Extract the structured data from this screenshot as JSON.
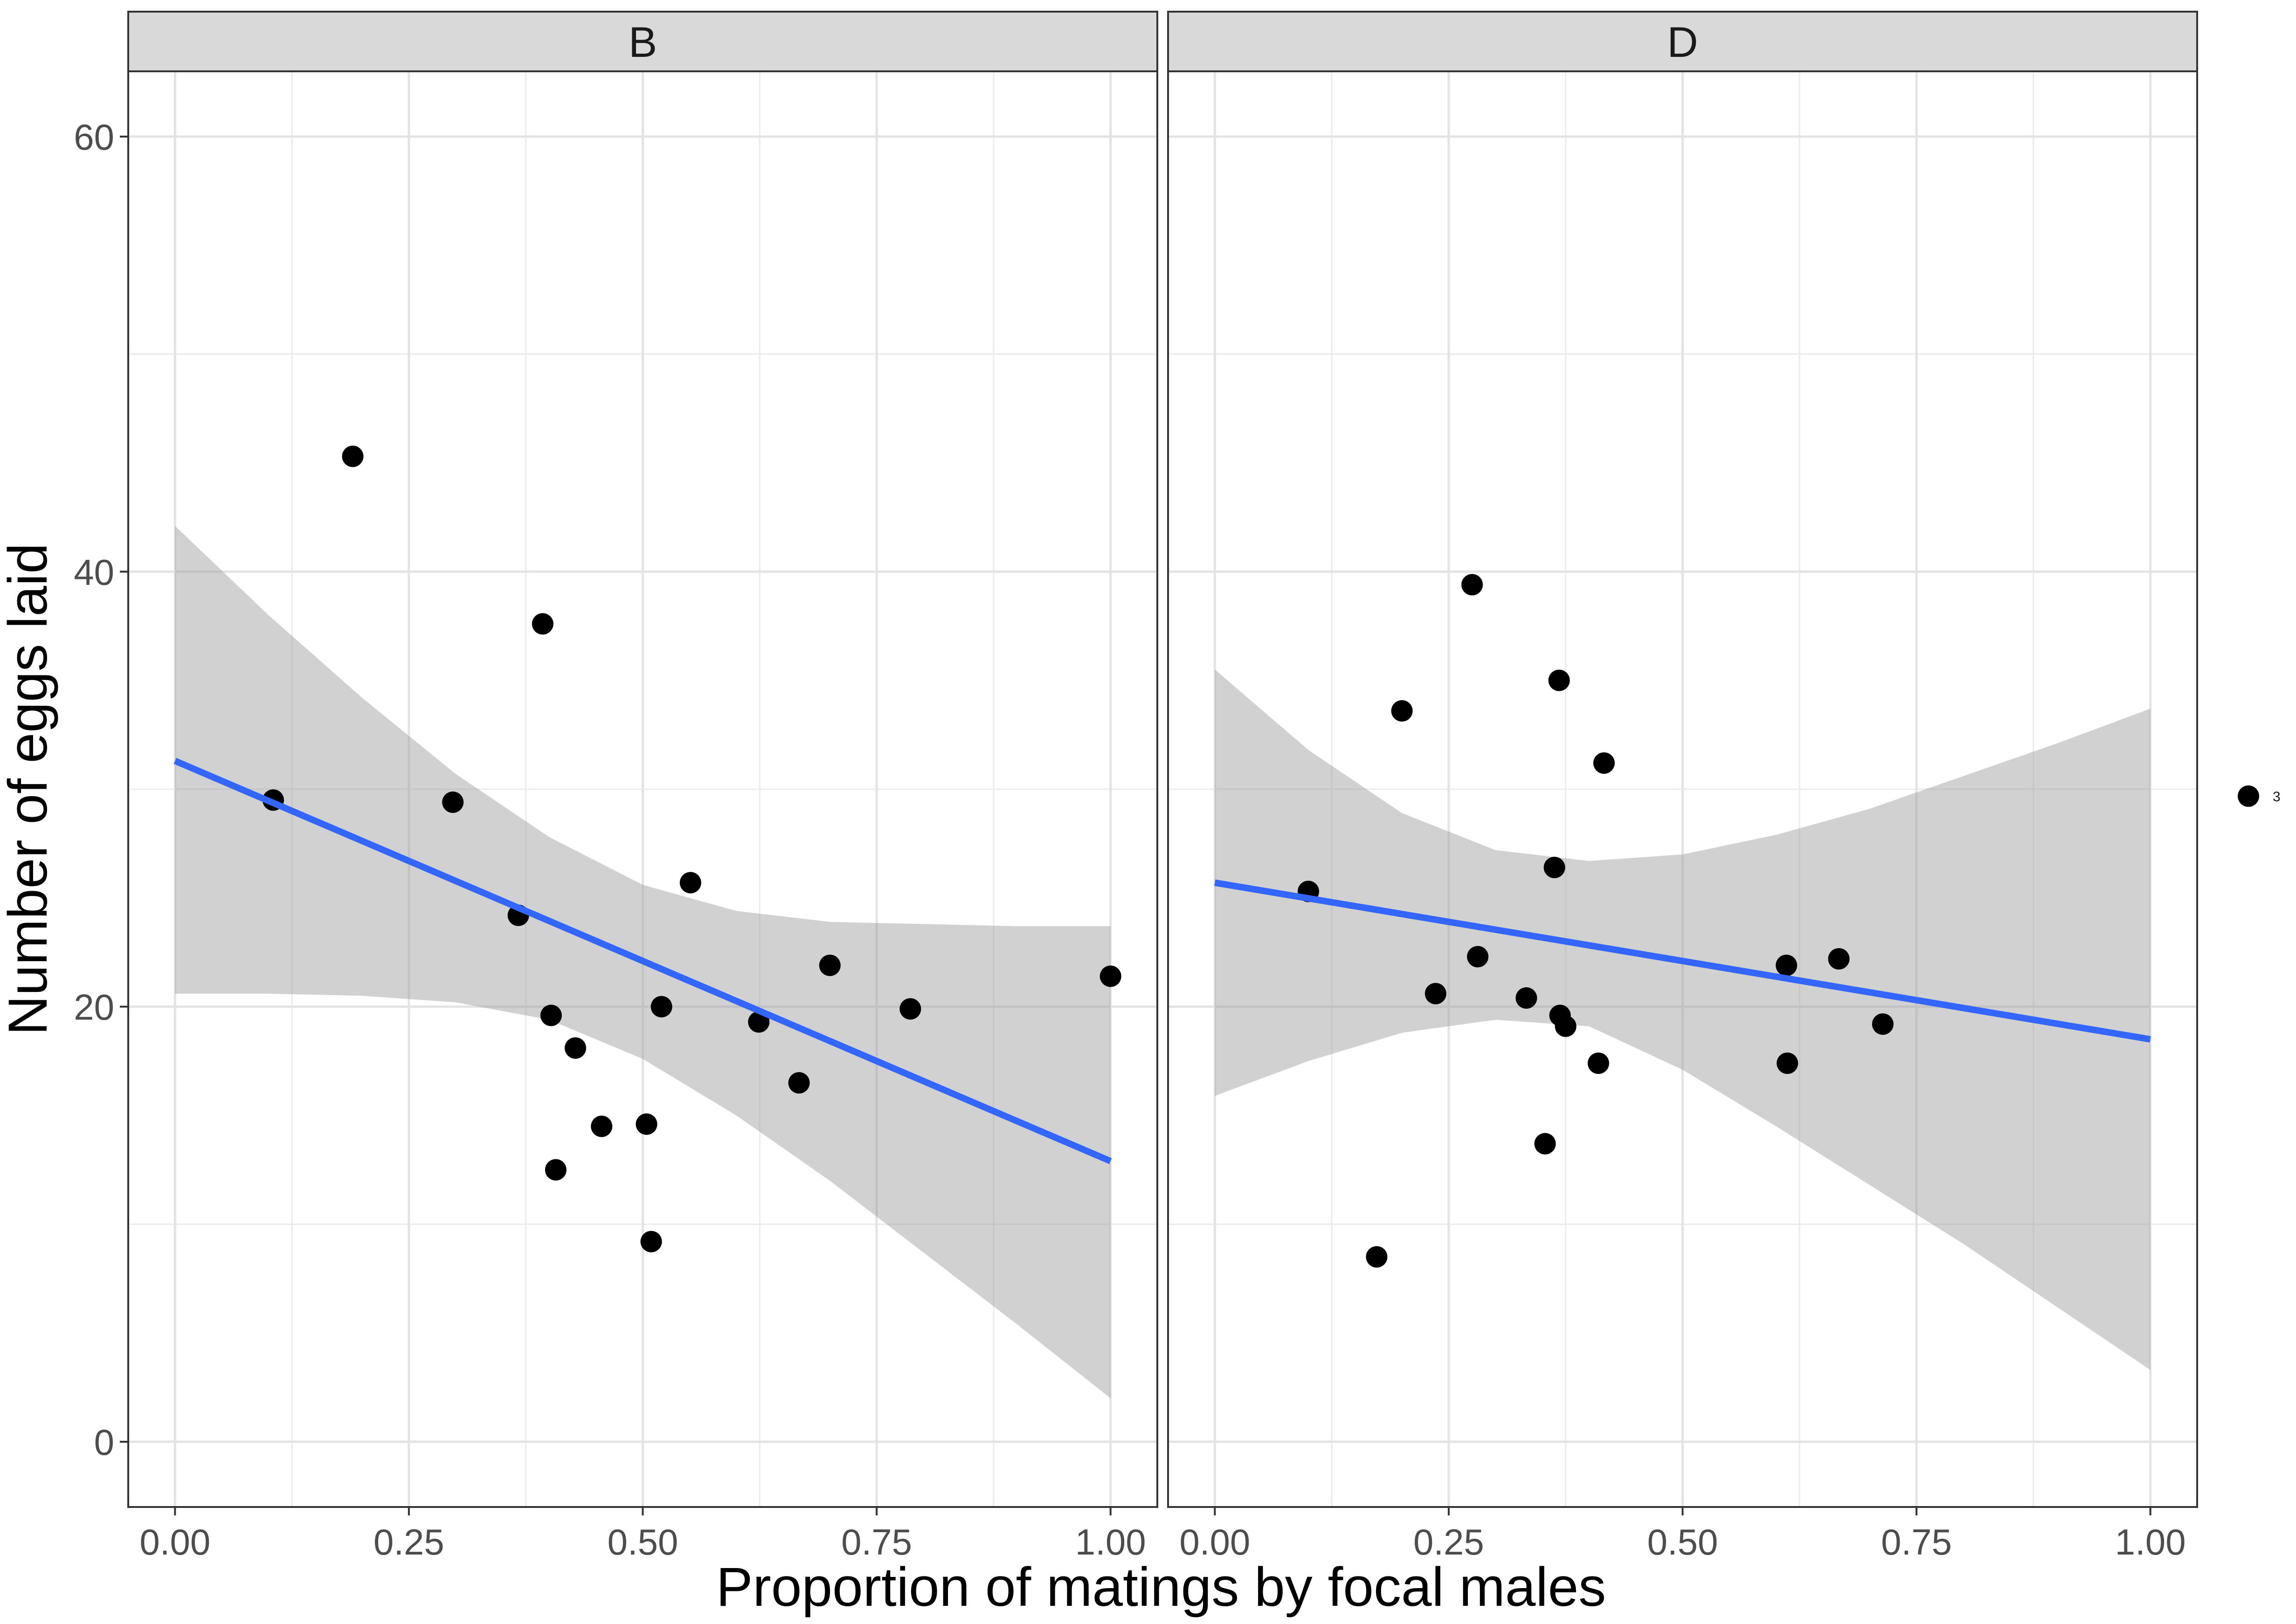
{
  "chart_data": {
    "type": "scatter",
    "xlabel": "Proportion of matings by focal males",
    "ylabel": "Number of eggs laid",
    "xlim": [
      -0.05,
      1.05
    ],
    "ylim": [
      -3,
      63
    ],
    "x_ticks": [
      "0.00",
      "0.25",
      "0.50",
      "0.75",
      "1.00"
    ],
    "x_tick_values": [
      0,
      0.25,
      0.5,
      0.75,
      1.0
    ],
    "y_ticks": [
      "0",
      "20",
      "40",
      "60"
    ],
    "y_tick_values": [
      0,
      20,
      40,
      60
    ],
    "grid": true,
    "point_color": "#000000",
    "fit_line_color": "#3366FF",
    "ribbon_color": "#999999",
    "legend": {
      "position": "right",
      "entries": [
        {
          "label": "3",
          "color": "#000000"
        }
      ]
    },
    "panels": [
      {
        "strip": "B",
        "points": [
          {
            "x": 0.105,
            "y": 29.5
          },
          {
            "x": 0.19,
            "y": 45.3
          },
          {
            "x": 0.297,
            "y": 29.4
          },
          {
            "x": 0.367,
            "y": 24.2
          },
          {
            "x": 0.393,
            "y": 37.6
          },
          {
            "x": 0.402,
            "y": 19.6
          },
          {
            "x": 0.407,
            "y": 12.5
          },
          {
            "x": 0.428,
            "y": 18.1
          },
          {
            "x": 0.456,
            "y": 14.5
          },
          {
            "x": 0.504,
            "y": 14.6
          },
          {
            "x": 0.509,
            "y": 9.2
          },
          {
            "x": 0.52,
            "y": 20.0
          },
          {
            "x": 0.551,
            "y": 25.7
          },
          {
            "x": 0.624,
            "y": 19.3
          },
          {
            "x": 0.667,
            "y": 16.5
          },
          {
            "x": 0.7,
            "y": 21.9
          },
          {
            "x": 0.786,
            "y": 19.9
          },
          {
            "x": 1.0,
            "y": 21.4
          }
        ],
        "fit": {
          "x": [
            0.0,
            1.0
          ],
          "y": [
            31.3,
            12.9
          ]
        },
        "ribbon": {
          "x": [
            0.0,
            0.1,
            0.2,
            0.3,
            0.4,
            0.5,
            0.6,
            0.7,
            0.8,
            0.9,
            1.0
          ],
          "upper": [
            42.1,
            38.0,
            34.2,
            30.7,
            27.8,
            25.6,
            24.4,
            23.9,
            23.8,
            23.7,
            23.7
          ],
          "lower": [
            20.6,
            20.6,
            20.5,
            20.2,
            19.4,
            17.6,
            15.0,
            12.0,
            8.7,
            5.4,
            2.0
          ]
        }
      },
      {
        "strip": "D",
        "points": [
          {
            "x": 0.1,
            "y": 25.3
          },
          {
            "x": 0.173,
            "y": 8.5
          },
          {
            "x": 0.2,
            "y": 33.6
          },
          {
            "x": 0.236,
            "y": 20.6
          },
          {
            "x": 0.275,
            "y": 39.4
          },
          {
            "x": 0.281,
            "y": 22.3
          },
          {
            "x": 0.333,
            "y": 20.4
          },
          {
            "x": 0.353,
            "y": 13.7
          },
          {
            "x": 0.363,
            "y": 26.4
          },
          {
            "x": 0.368,
            "y": 35.0
          },
          {
            "x": 0.369,
            "y": 19.6
          },
          {
            "x": 0.375,
            "y": 19.1
          },
          {
            "x": 0.41,
            "y": 17.4
          },
          {
            "x": 0.416,
            "y": 31.2
          },
          {
            "x": 0.611,
            "y": 21.9
          },
          {
            "x": 0.612,
            "y": 17.4
          },
          {
            "x": 0.667,
            "y": 22.2
          },
          {
            "x": 0.714,
            "y": 19.2
          }
        ],
        "fit": {
          "x": [
            0.0,
            1.0
          ],
          "y": [
            25.7,
            18.5
          ]
        },
        "ribbon": {
          "x": [
            0.0,
            0.1,
            0.2,
            0.3,
            0.4,
            0.5,
            0.6,
            0.7,
            0.8,
            0.9,
            1.0
          ],
          "upper": [
            35.5,
            31.8,
            28.9,
            27.2,
            26.7,
            27.0,
            27.9,
            29.1,
            30.6,
            32.1,
            33.7
          ],
          "lower": [
            15.9,
            17.5,
            18.8,
            19.4,
            19.1,
            17.1,
            14.5,
            11.8,
            9.1,
            6.2,
            3.3
          ]
        }
      }
    ]
  }
}
